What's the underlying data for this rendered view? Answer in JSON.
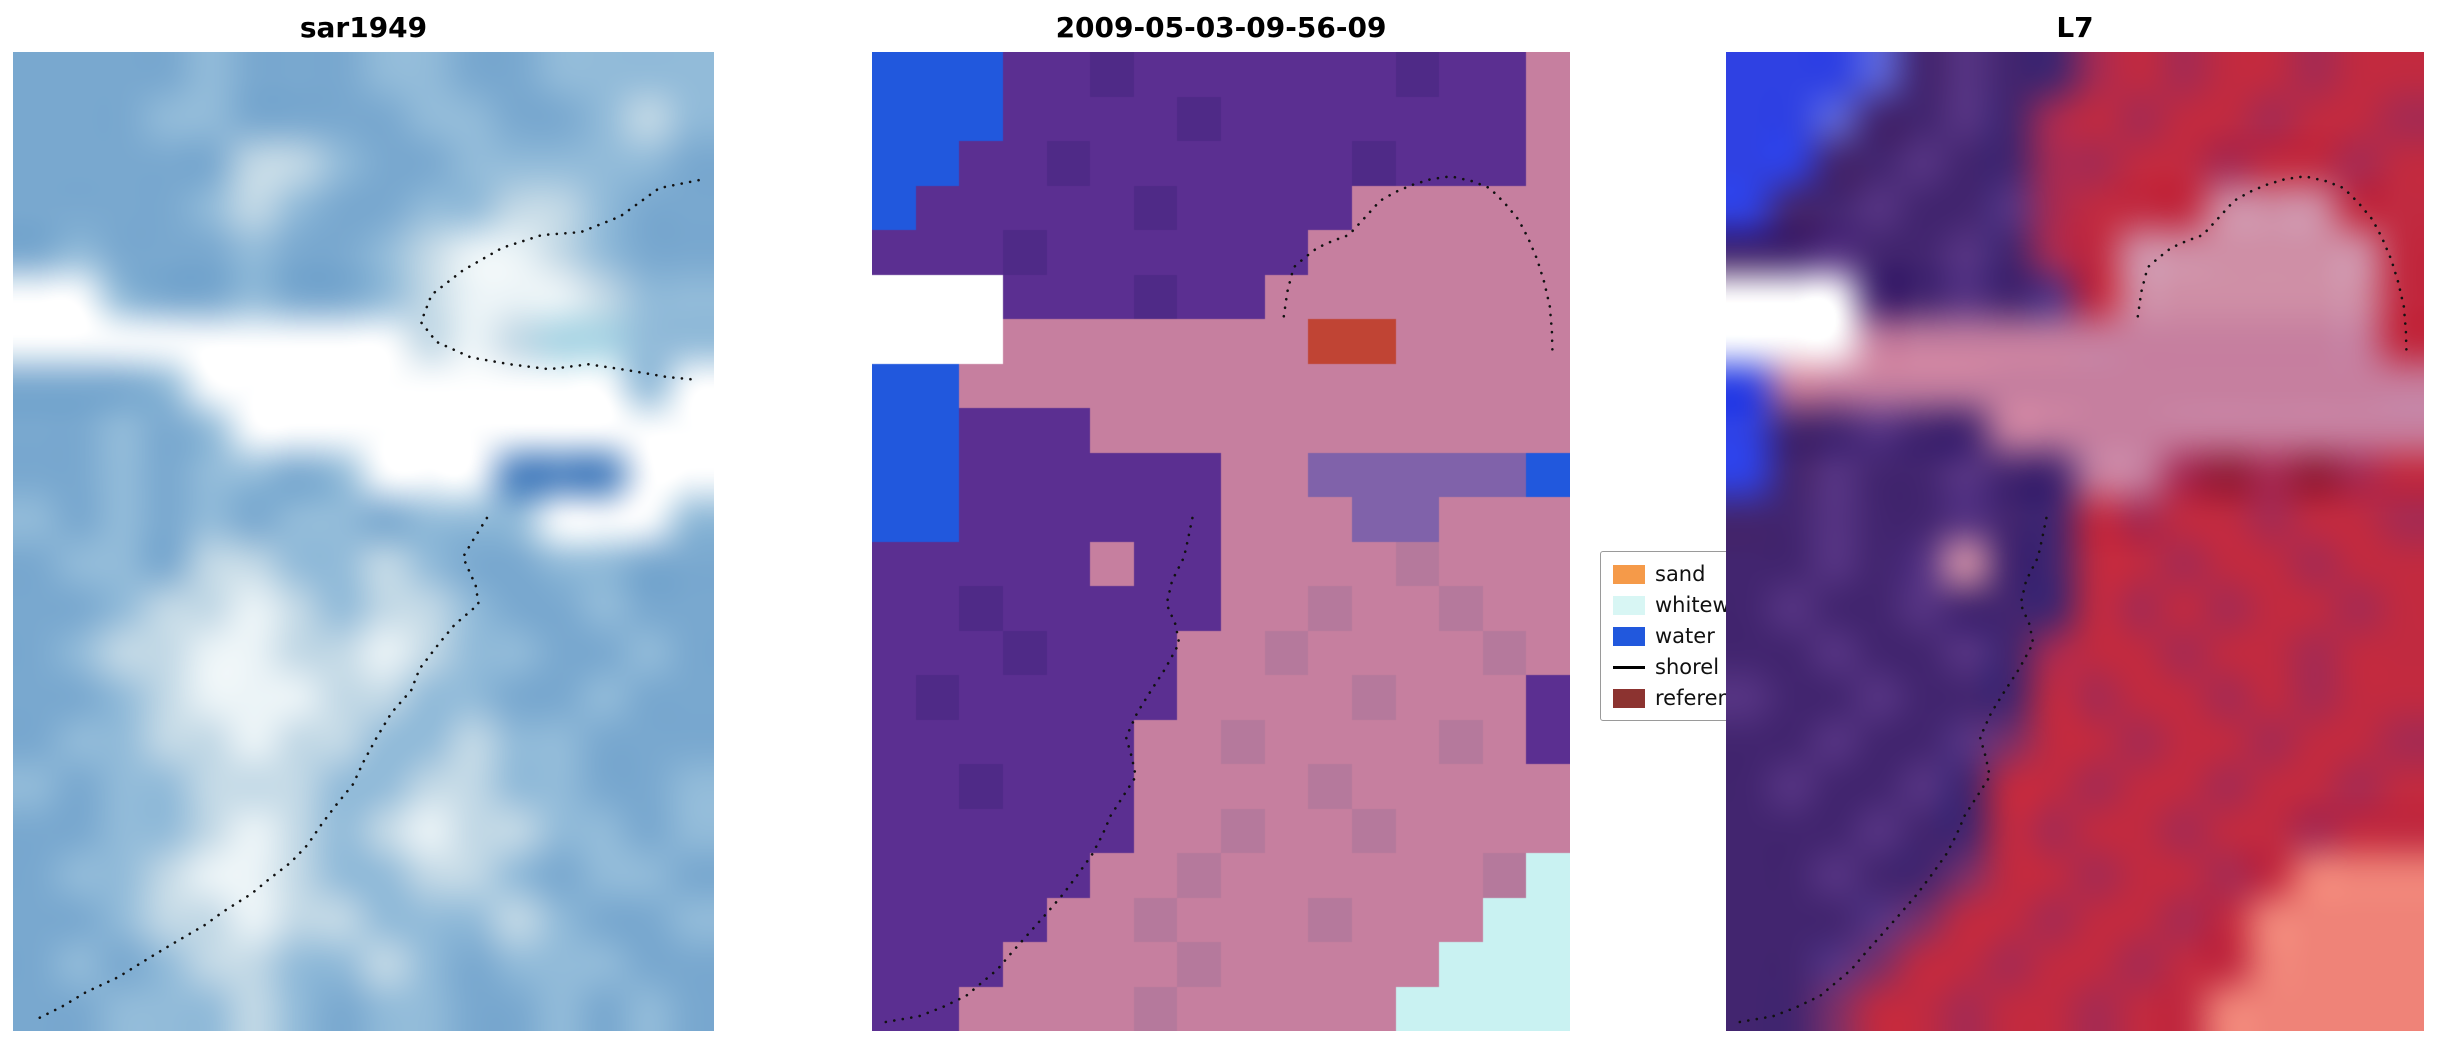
{
  "figure": {
    "background": "#ffffff"
  },
  "legend": {
    "entries": [
      {
        "label": "sand",
        "swatch": "patch",
        "color": "#f59a49"
      },
      {
        "label": "whitew",
        "swatch": "patch",
        "color": "#d8f6f4"
      },
      {
        "label": "water",
        "swatch": "patch",
        "color": "#2158dd"
      },
      {
        "label": "shorel",
        "swatch": "line",
        "color": "#000000"
      },
      {
        "label": "referen",
        "swatch": "patch",
        "color": "#8c3330"
      }
    ]
  },
  "chart_data": [
    {
      "type": "heatmap",
      "id": "sar1949",
      "title": "sar1949",
      "smooth": true,
      "palette": {
        "a": "#79a8cf",
        "b": "#92bbd9",
        "c": "#c3d9e6",
        "d": "#ecf4f7",
        "e": "#6294c2",
        "f": "#ffffff",
        "g": "#4a80bf",
        "h": "#a8d4e4"
      },
      "rows": [
        "aaaabaaabbaabbbb",
        "aaabbaaaabbaabcb",
        "aaaaaccbaabbbbba",
        "aaaabcbaabbccbaa",
        "abaaabaabcddcbaa",
        "ffbaabaabcdddcbb",
        "fffffffffcdchhbb",
        "aaabffffffffffbf",
        "aababfffffffffff",
        "aababbabfffgggff",
        "babababbabbbfffb",
        "abbaccbbcbaabbaa",
        "aabccdcbccbaabaa",
        "abccddccdcbbaaba",
        "aabcdddccbbaabaa",
        "abbccdccbbcbbaaa",
        "babbcccbbccbbaab",
        "aabbcdcbcdccbbab",
        "abbcddcbbccbabba",
        "aabccdccbbbcbaab",
        "ababccbbcbabbbaa",
        "aabbbcbabbaababa"
      ],
      "shorelines": [
        [
          [
            0.676,
            0.476
          ],
          [
            0.655,
            0.5
          ],
          [
            0.642,
            0.516
          ],
          [
            0.66,
            0.545
          ],
          [
            0.664,
            0.564
          ],
          [
            0.63,
            0.585
          ],
          [
            0.608,
            0.604
          ],
          [
            0.58,
            0.63
          ],
          [
            0.568,
            0.652
          ],
          [
            0.54,
            0.675
          ],
          [
            0.519,
            0.7
          ],
          [
            0.5,
            0.725
          ],
          [
            0.485,
            0.748
          ],
          [
            0.46,
            0.77
          ],
          [
            0.441,
            0.788
          ],
          [
            0.42,
            0.81
          ],
          [
            0.396,
            0.828
          ],
          [
            0.365,
            0.845
          ],
          [
            0.34,
            0.86
          ],
          [
            0.3,
            0.878
          ],
          [
            0.273,
            0.892
          ],
          [
            0.23,
            0.91
          ],
          [
            0.195,
            0.925
          ],
          [
            0.15,
            0.945
          ],
          [
            0.105,
            0.96
          ],
          [
            0.07,
            0.975
          ],
          [
            0.031,
            0.989
          ]
        ],
        [
          [
            0.978,
            0.131
          ],
          [
            0.922,
            0.139
          ],
          [
            0.866,
            0.168
          ],
          [
            0.81,
            0.184
          ],
          [
            0.754,
            0.187
          ],
          [
            0.698,
            0.2
          ],
          [
            0.642,
            0.223
          ],
          [
            0.597,
            0.248
          ],
          [
            0.582,
            0.276
          ],
          [
            0.604,
            0.296
          ],
          [
            0.653,
            0.312
          ],
          [
            0.709,
            0.319
          ],
          [
            0.765,
            0.324
          ],
          [
            0.821,
            0.319
          ],
          [
            0.877,
            0.325
          ],
          [
            0.933,
            0.332
          ],
          [
            0.978,
            0.335
          ]
        ]
      ]
    },
    {
      "type": "heatmap",
      "id": "2009-05-03-09-56-09",
      "title": "2009-05-03-09-56-09",
      "smooth": false,
      "palette": {
        "P": "#5b2f91",
        "Q": "#4f2a87",
        "M": "#c67f9f",
        "N": "#b5799c",
        "B": "#2158dd",
        "C": "#c9f2f2",
        "R": "#c04434",
        "W": "#ffffff",
        "V": "#8062aa"
      },
      "rows": [
        "BBBPPQPPPPPPQPPM",
        "BBBPPPPQPPPPPPPM",
        "BBPPQPPPPPPQPPPM",
        "BPPPPPQPPPPMMMMM",
        "PPPQPPPPPPMMMMMM",
        "WWWPPPQPPMMMMMMM",
        "WWWMMMMMMMRRMMMM",
        "BBMMMMMMMMMMMMMM",
        "BBPPPMMMMMMMMMMM",
        "BBPPPPPPMMVVVVVB",
        "BBPPPPPPMMMVVMMM",
        "PPPPPMPPMMMMNMMM",
        "PPQPPPPPMMNMMNMM",
        "PPPQPPPMMNMMMMNM",
        "PQPPPPPMMMMNMMMP",
        "PPPPPPMMNMMMMNMP",
        "PPQPPPMMMMNMMMMM",
        "PPPPPPMMNMMNMMMM",
        "PPPPPMMNMMMMMMNC",
        "PPPPMMNMMMNMMMCC",
        "PPPMMMMNMMMMMCCC",
        "PPMMMMNMMMMMCCCC"
      ],
      "shorelines": [
        [
          [
            0.459,
            0.476
          ],
          [
            0.452,
            0.5
          ],
          [
            0.447,
            0.516
          ],
          [
            0.43,
            0.54
          ],
          [
            0.422,
            0.564
          ],
          [
            0.435,
            0.585
          ],
          [
            0.44,
            0.604
          ],
          [
            0.42,
            0.63
          ],
          [
            0.4,
            0.652
          ],
          [
            0.38,
            0.675
          ],
          [
            0.364,
            0.7
          ],
          [
            0.372,
            0.72
          ],
          [
            0.378,
            0.74
          ],
          [
            0.36,
            0.76
          ],
          [
            0.342,
            0.78
          ],
          [
            0.33,
            0.8
          ],
          [
            0.315,
            0.82
          ],
          [
            0.295,
            0.84
          ],
          [
            0.274,
            0.86
          ],
          [
            0.25,
            0.88
          ],
          [
            0.225,
            0.9
          ],
          [
            0.2,
            0.92
          ],
          [
            0.18,
            0.937
          ],
          [
            0.155,
            0.952
          ],
          [
            0.135,
            0.964
          ],
          [
            0.1,
            0.976
          ],
          [
            0.067,
            0.985
          ],
          [
            0.018,
            0.991
          ]
        ],
        [
          [
            0.59,
            0.27
          ],
          [
            0.595,
            0.245
          ],
          [
            0.604,
            0.22
          ],
          [
            0.62,
            0.21
          ],
          [
            0.638,
            0.2
          ],
          [
            0.66,
            0.193
          ],
          [
            0.683,
            0.187
          ],
          [
            0.705,
            0.17
          ],
          [
            0.728,
            0.152
          ],
          [
            0.75,
            0.143
          ],
          [
            0.773,
            0.136
          ],
          [
            0.8,
            0.13
          ],
          [
            0.829,
            0.127
          ],
          [
            0.86,
            0.132
          ],
          [
            0.885,
            0.139
          ],
          [
            0.906,
            0.154
          ],
          [
            0.926,
            0.171
          ],
          [
            0.94,
            0.19
          ],
          [
            0.953,
            0.212
          ],
          [
            0.963,
            0.235
          ],
          [
            0.971,
            0.26
          ],
          [
            0.974,
            0.285
          ],
          [
            0.975,
            0.308
          ]
        ]
      ]
    },
    {
      "type": "heatmap",
      "id": "L7",
      "title": "L7",
      "smooth": true,
      "palette": {
        "D": "#42256f",
        "E": "#563483",
        "R": "#c12a40",
        "S": "#a62a52",
        "T": "#7c2f68",
        "M": "#c67f9f",
        "B": "#2f41e3",
        "U": "#5b63d6",
        "W": "#ffffff",
        "L": "#ef8378",
        "O": "#cf8fa6",
        "G": "#921d38"
      },
      "rows": [
        "BBBUDEDDSRSRRSRR",
        "BBUDDEDSRSRRSRRS",
        "BBDDEDDSSRRSRRSR",
        "BDDEDDESRRROOORR",
        "DDEDDEDSROOOOOOR",
        "WWWDDEDEROOOOOOR",
        "WWWMMMMMMMMMMMMR",
        "BMMMMMMMMMMMMMMM",
        "BDDEDDMMMMMMMMMM",
        "BDEDDEDDMMSGSGSR",
        "DDEDDEDDRSRRSRRS",
        "DDEDEODDRRSRRSRR",
        "DEDDEDDDRSRSRRSR",
        "DDEDDEDSRRSRRSRR",
        "EDDEDDDRSRRSRSRR",
        "DDEDDETRRSRRSRRS",
        "DEDDEDRRSRRSRRSR",
        "DDDEDDRSRRSRRSRR",
        "DDEDDTRRSRRSRLLL",
        "DDDETRRSRRSRLLLL",
        "DDETRRSRRSRRLLLL",
        "DDTRRSRRSRRLLLLL"
      ],
      "shorelines": [
        [
          [
            0.459,
            0.476
          ],
          [
            0.452,
            0.5
          ],
          [
            0.447,
            0.516
          ],
          [
            0.43,
            0.54
          ],
          [
            0.422,
            0.564
          ],
          [
            0.435,
            0.585
          ],
          [
            0.44,
            0.604
          ],
          [
            0.42,
            0.63
          ],
          [
            0.4,
            0.652
          ],
          [
            0.38,
            0.675
          ],
          [
            0.364,
            0.7
          ],
          [
            0.372,
            0.72
          ],
          [
            0.378,
            0.74
          ],
          [
            0.36,
            0.76
          ],
          [
            0.342,
            0.78
          ],
          [
            0.33,
            0.8
          ],
          [
            0.315,
            0.82
          ],
          [
            0.295,
            0.84
          ],
          [
            0.274,
            0.86
          ],
          [
            0.25,
            0.88
          ],
          [
            0.225,
            0.9
          ],
          [
            0.2,
            0.92
          ],
          [
            0.18,
            0.937
          ],
          [
            0.155,
            0.952
          ],
          [
            0.135,
            0.964
          ],
          [
            0.1,
            0.976
          ],
          [
            0.067,
            0.985
          ],
          [
            0.018,
            0.991
          ]
        ],
        [
          [
            0.59,
            0.27
          ],
          [
            0.595,
            0.245
          ],
          [
            0.604,
            0.22
          ],
          [
            0.62,
            0.21
          ],
          [
            0.638,
            0.2
          ],
          [
            0.66,
            0.193
          ],
          [
            0.683,
            0.187
          ],
          [
            0.705,
            0.17
          ],
          [
            0.728,
            0.152
          ],
          [
            0.75,
            0.143
          ],
          [
            0.773,
            0.136
          ],
          [
            0.8,
            0.13
          ],
          [
            0.829,
            0.127
          ],
          [
            0.86,
            0.132
          ],
          [
            0.885,
            0.139
          ],
          [
            0.906,
            0.154
          ],
          [
            0.926,
            0.171
          ],
          [
            0.94,
            0.19
          ],
          [
            0.953,
            0.212
          ],
          [
            0.963,
            0.235
          ],
          [
            0.971,
            0.26
          ],
          [
            0.974,
            0.285
          ],
          [
            0.975,
            0.308
          ]
        ]
      ]
    }
  ]
}
